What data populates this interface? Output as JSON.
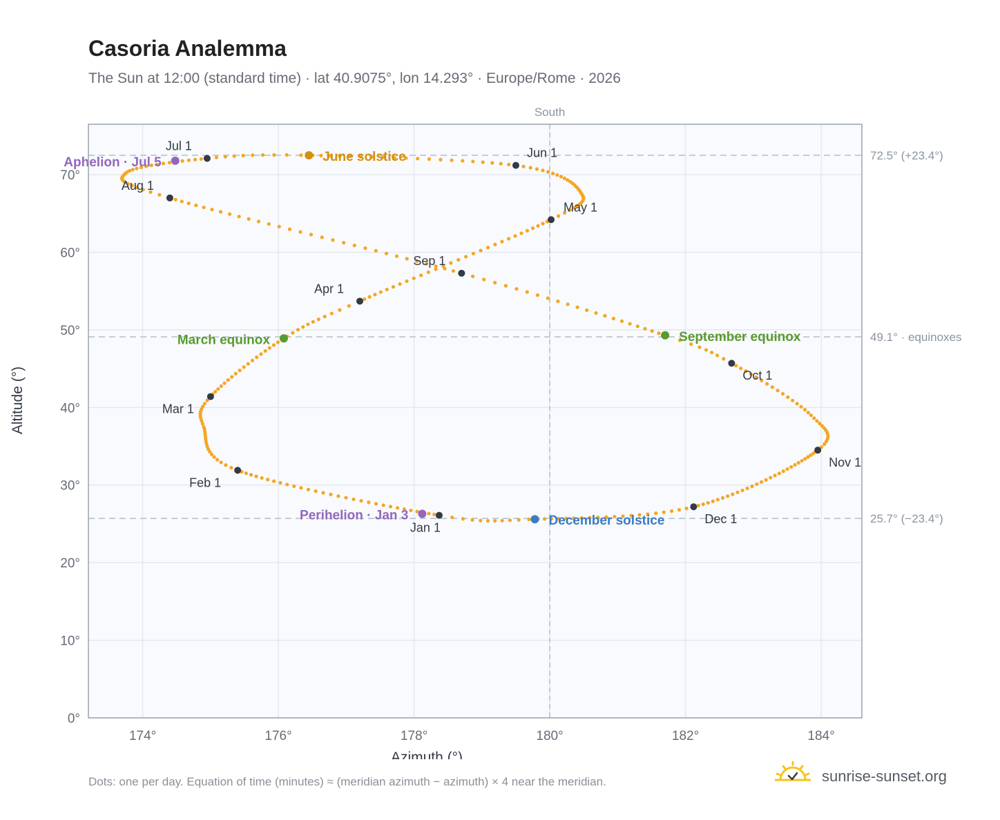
{
  "header": {
    "title": "Casoria Analemma",
    "subtitle": "The Sun at 12:00 (standard time) · lat 40.9075°, lon 14.293° · Europe/Rome · 2026"
  },
  "footer": {
    "note": "Dots: one per day. Equation of time (minutes) ≈ (meridian azimuth − azimuth) × 4 near the meridian.",
    "brand": "sunrise-sunset.org"
  },
  "colors": {
    "curve": "#f5a623",
    "month_point": "#333a44",
    "equinox": "#5a9a2e",
    "june_solstice": "#d4900e",
    "december_solstice": "#3a7cc4",
    "apsis": "#9467bd",
    "plot_bg": "#f8fafd",
    "grid": "#e4e8ee",
    "ref_line": "#b8c2cc",
    "axis_text": "#666b75",
    "brand_sun": "#f5c518"
  },
  "chart_data": {
    "type": "scatter",
    "xlabel": "Azimuth (°)",
    "ylabel": "Altitude (°)",
    "xlim": [
      173.2,
      184.6
    ],
    "ylim": [
      0,
      76.5
    ],
    "xticks": [
      174,
      176,
      178,
      180,
      182,
      184
    ],
    "yticks": [
      0,
      10,
      20,
      30,
      40,
      50,
      60,
      70
    ],
    "grid": true,
    "meridian": {
      "x": 180,
      "label": "South"
    },
    "reference_lines": [
      {
        "y": 72.5,
        "label": "72.5° (+23.4°)"
      },
      {
        "y": 49.1,
        "label": "49.1° · equinoxes"
      },
      {
        "y": 25.7,
        "label": "25.7° (−23.4°)"
      }
    ],
    "month_points": [
      {
        "label": "Jan 1",
        "az": 178.37,
        "alt": 26.1
      },
      {
        "label": "Feb 1",
        "az": 175.4,
        "alt": 31.9
      },
      {
        "label": "Mar 1",
        "az": 175.0,
        "alt": 41.4
      },
      {
        "label": "Apr 1",
        "az": 177.2,
        "alt": 53.7
      },
      {
        "label": "May 1",
        "az": 180.02,
        "alt": 64.2
      },
      {
        "label": "Jun 1",
        "az": 179.5,
        "alt": 71.2
      },
      {
        "label": "Jul 1",
        "az": 174.95,
        "alt": 72.1
      },
      {
        "label": "Aug 1",
        "az": 174.4,
        "alt": 67.0
      },
      {
        "label": "Sep 1",
        "az": 178.7,
        "alt": 57.3
      },
      {
        "label": "Oct 1",
        "az": 182.68,
        "alt": 45.7
      },
      {
        "label": "Nov 1",
        "az": 183.95,
        "alt": 34.5
      },
      {
        "label": "Dec 1",
        "az": 182.12,
        "alt": 27.2
      }
    ],
    "events": [
      {
        "label": "March equinox",
        "az": 176.08,
        "alt": 48.9,
        "kind": "equinox"
      },
      {
        "label": "June solstice",
        "az": 176.45,
        "alt": 72.5,
        "kind": "june_solstice"
      },
      {
        "label": "September equinox",
        "az": 181.7,
        "alt": 49.3,
        "kind": "equinox"
      },
      {
        "label": "December solstice",
        "az": 179.78,
        "alt": 25.6,
        "kind": "december_solstice"
      },
      {
        "label": "Perihelion · Jan 3",
        "az": 178.12,
        "alt": 26.3,
        "kind": "apsis"
      },
      {
        "label": "Aphelion · Jul 5",
        "az": 174.48,
        "alt": 71.8,
        "kind": "apsis"
      }
    ]
  }
}
